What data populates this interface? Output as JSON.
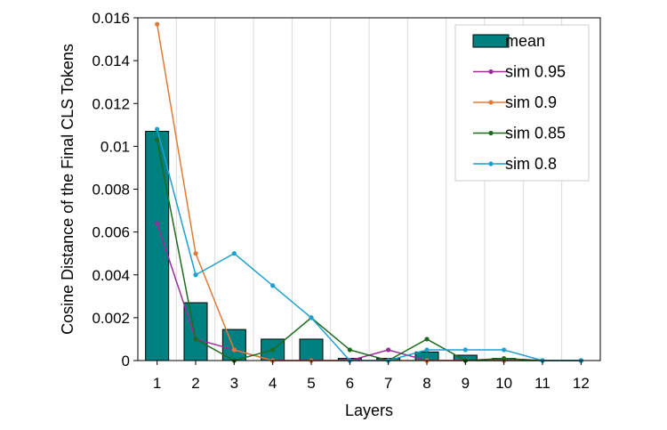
{
  "chart_data": {
    "type": "bar",
    "xlabel": "Layers",
    "ylabel": "Cosine Distance of the Final CLS Tokens",
    "ylim": [
      0,
      0.016
    ],
    "yticks": [
      0,
      0.002,
      0.004,
      0.006,
      0.008,
      0.01,
      0.012,
      0.014,
      0.016
    ],
    "ytick_labels": [
      "0",
      "0.002",
      "0.004",
      "0.006",
      "0.008",
      "0.01",
      "0.012",
      "0.014",
      "0.016"
    ],
    "categories": [
      "1",
      "2",
      "3",
      "4",
      "5",
      "6",
      "7",
      "8",
      "9",
      "10",
      "11",
      "12"
    ],
    "grid": "vertical",
    "legend_position": "top-right",
    "bar_series": {
      "name": "mean",
      "color": "#008080",
      "values": [
        0.0107,
        0.0027,
        0.00145,
        0.001,
        0.001,
        0.0001,
        0.0001,
        0.0004,
        0.00025,
        0.0001,
        0.0,
        0.0
      ]
    },
    "line_series": [
      {
        "name": "sim 0.95",
        "color": "#9b2d9b",
        "values": [
          0.0064,
          0.001,
          0.0005,
          0.0,
          0.0,
          0.0,
          0.0005,
          0.0,
          0.0,
          0.0,
          0.0,
          0.0
        ]
      },
      {
        "name": "sim 0.9",
        "color": "#e07b39",
        "values": [
          0.0157,
          0.005,
          0.0005,
          0.0,
          0.0,
          0.0,
          0.0,
          0.0,
          0.0,
          0.0,
          0.0,
          0.0
        ]
      },
      {
        "name": "sim 0.85",
        "color": "#1e6b1e",
        "values": [
          0.0103,
          0.001,
          0.0,
          0.0005,
          0.002,
          0.0005,
          0.0,
          0.001,
          0.0,
          0.0001,
          0.0,
          0.0
        ]
      },
      {
        "name": "sim 0.8",
        "color": "#1fa0cc",
        "values": [
          0.0108,
          0.004,
          0.005,
          0.0035,
          0.002,
          0.0,
          0.0,
          0.0005,
          0.0005,
          0.0005,
          0.0,
          0.0
        ]
      }
    ]
  }
}
